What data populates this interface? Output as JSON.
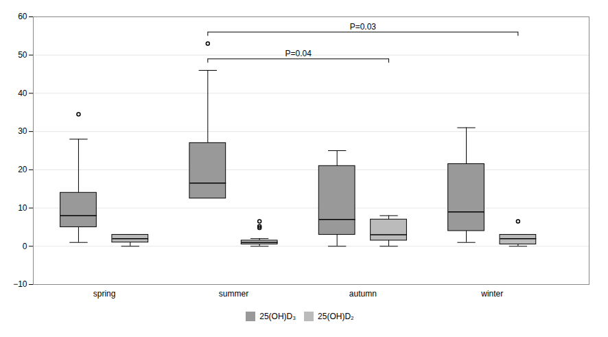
{
  "chart_data": {
    "type": "box",
    "categories": [
      "spring",
      "summer",
      "autumn",
      "winter"
    ],
    "series": [
      {
        "name": "25(OH)D₃",
        "color": "#999999",
        "boxes": [
          {
            "q1": 5,
            "median": 8,
            "q3": 14,
            "whislo": 1,
            "whishi": 28,
            "fliers": [
              34.5
            ]
          },
          {
            "q1": 12.5,
            "median": 16.5,
            "q3": 27,
            "whislo": 14,
            "whishi": 46,
            "fliers": [
              53
            ]
          },
          {
            "q1": 3,
            "median": 7,
            "q3": 21,
            "whislo": 0,
            "whishi": 25,
            "fliers": []
          },
          {
            "q1": 4,
            "median": 9,
            "q3": 21.5,
            "whislo": 1,
            "whishi": 31,
            "fliers": []
          }
        ]
      },
      {
        "name": "25(OH)D₂",
        "color": "#bbbbbb",
        "boxes": [
          {
            "q1": 1,
            "median": 2,
            "q3": 3,
            "whislo": 0,
            "whishi": 3,
            "fliers": []
          },
          {
            "q1": 0.5,
            "median": 1,
            "q3": 1.5,
            "whislo": 0,
            "whishi": 2,
            "fliers": [
              4.8,
              5.2,
              6.5
            ]
          },
          {
            "q1": 1.5,
            "median": 3,
            "q3": 7,
            "whislo": 0,
            "whishi": 8,
            "fliers": []
          },
          {
            "q1": 0.5,
            "median": 2,
            "q3": 3,
            "whislo": 0,
            "whishi": 3,
            "fliers": [
              6.5
            ]
          }
        ]
      }
    ],
    "ylim": [
      -10,
      60
    ],
    "yticks": [
      -10,
      0,
      10,
      20,
      30,
      40,
      50,
      60
    ],
    "grid": true,
    "legend": "bottom",
    "annotations": [
      {
        "text": "P=0.04",
        "y": 49,
        "from": {
          "category": "summer",
          "series": "25(OH)D₃"
        },
        "to": {
          "category": "autumn",
          "series": "25(OH)D₂"
        }
      },
      {
        "text": "P=0.03",
        "y": 56,
        "from": {
          "category": "summer",
          "series": "25(OH)D₃"
        },
        "to": {
          "category": "winter",
          "series": "25(OH)D₂"
        }
      }
    ]
  }
}
